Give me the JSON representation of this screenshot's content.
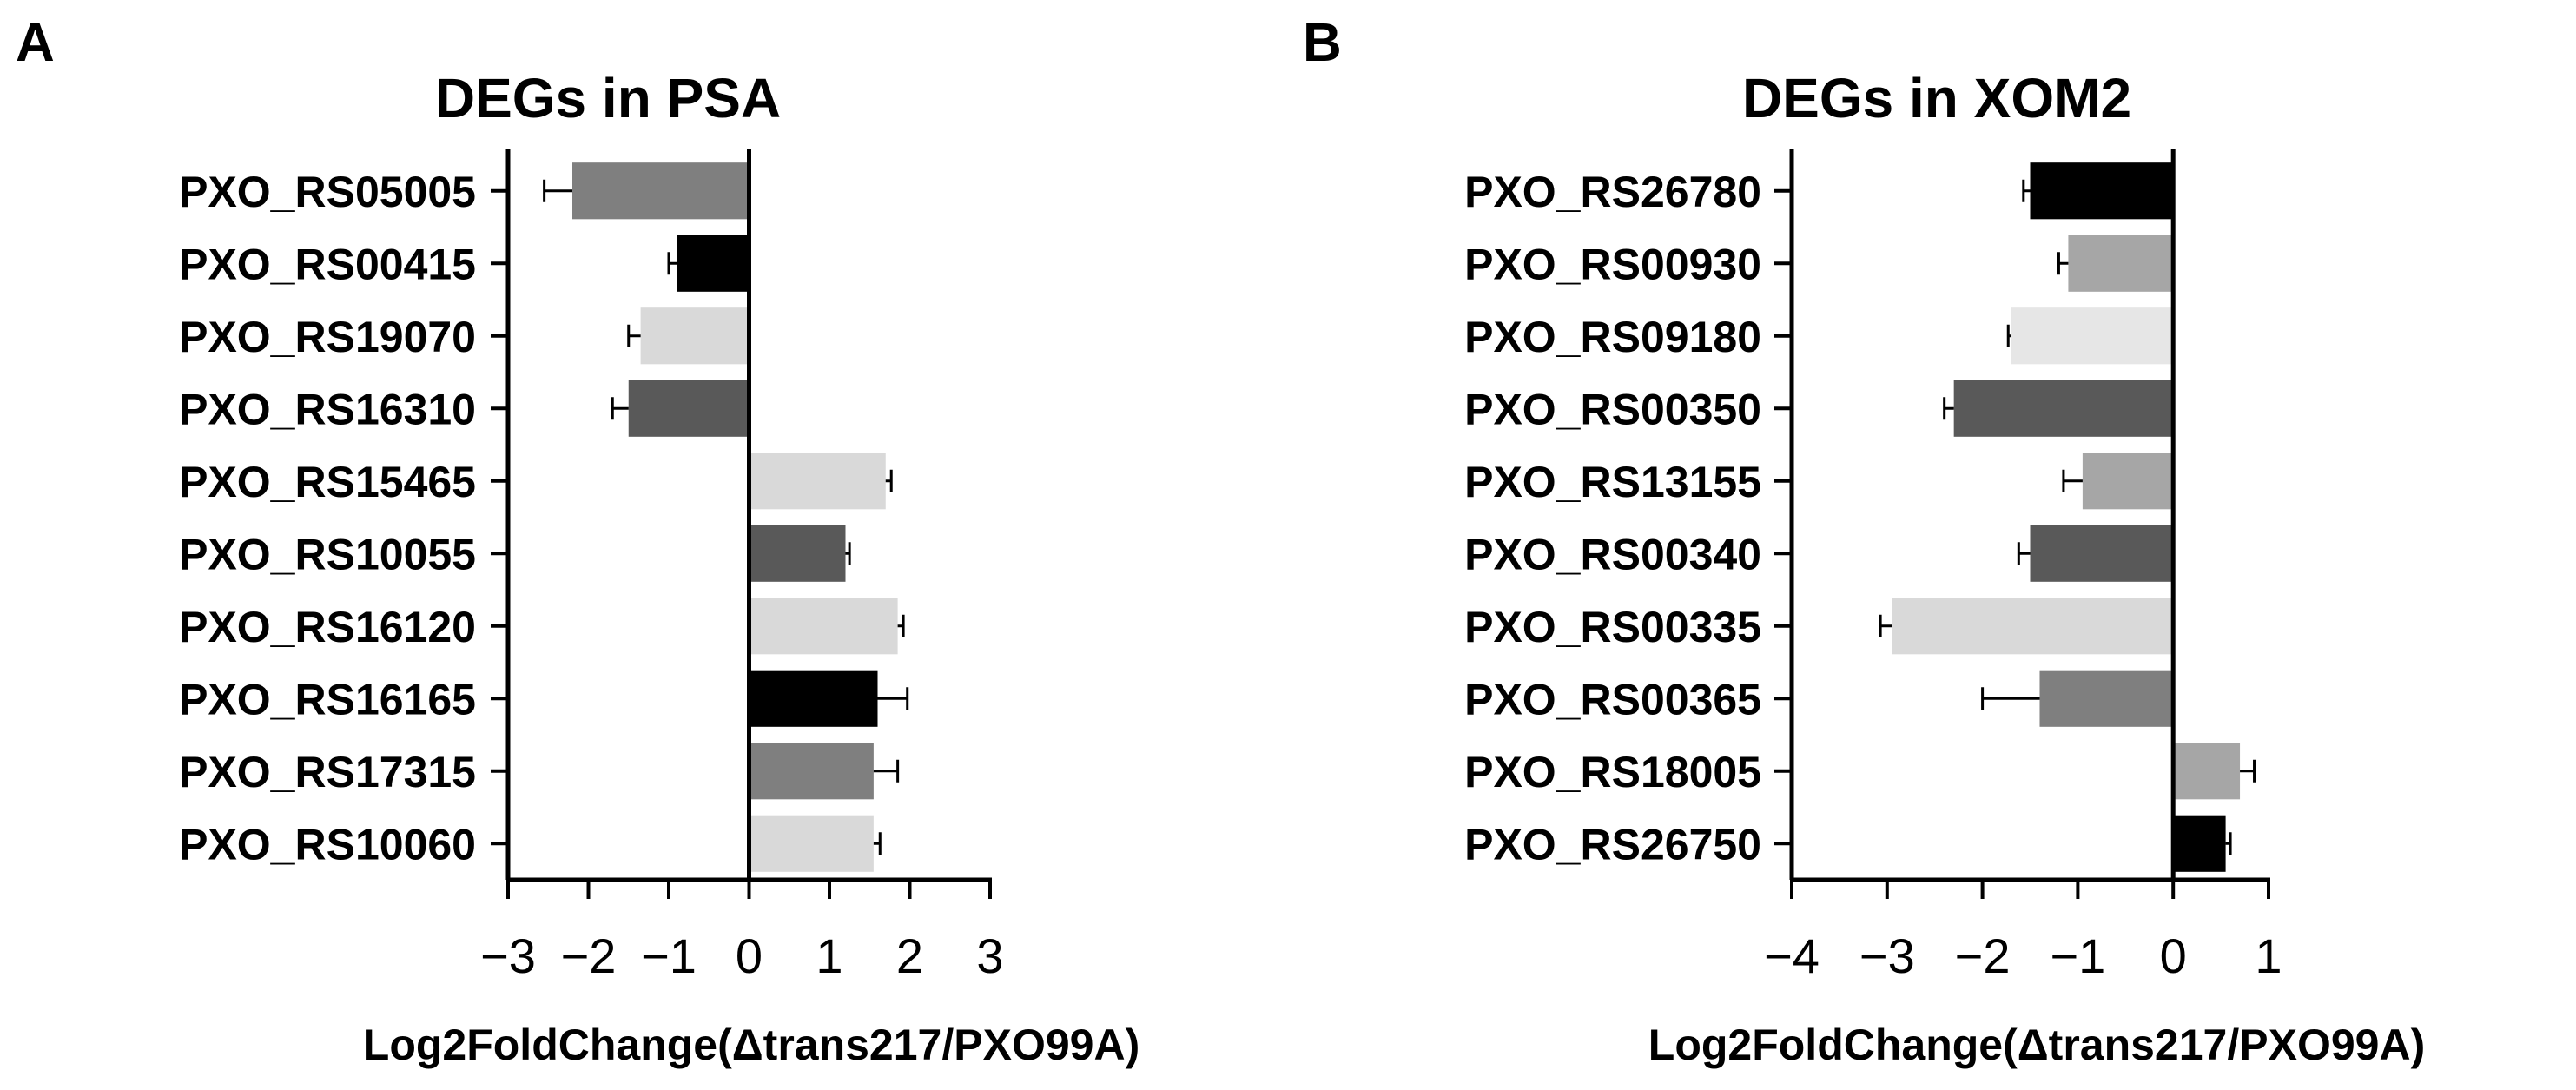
{
  "chart_data": [
    {
      "type": "bar",
      "orientation": "horizontal",
      "panel": "A",
      "title": "DEGs in PSA",
      "xlabel": "Log2FoldChange(Δtrans217/PXO99A)",
      "ylabel": "",
      "xlim": [
        -3,
        3
      ],
      "xticks": [
        "−3",
        "−2",
        "−1",
        "0",
        "1",
        "2",
        "3"
      ],
      "categories": [
        "PXO_RS05005",
        "PXO_RS00415",
        "PXO_RS19070",
        "PXO_RS16310",
        "PXO_RS15465",
        "PXO_RS10055",
        "PXO_RS16120",
        "PXO_RS16165",
        "PXO_RS17315",
        "PXO_RS10060"
      ],
      "values": [
        -2.2,
        -0.9,
        -1.35,
        -1.5,
        1.7,
        1.2,
        1.85,
        1.6,
        1.55,
        1.55
      ],
      "errors": [
        0.35,
        0.1,
        0.15,
        0.2,
        0.07,
        0.05,
        0.07,
        0.37,
        0.3,
        0.08
      ],
      "colors": [
        "#7f7f7f",
        "#000000",
        "#d9d9d9",
        "#595959",
        "#d9d9d9",
        "#595959",
        "#d9d9d9",
        "#000000",
        "#7f7f7f",
        "#d9d9d9"
      ],
      "grid": false,
      "legend": "none"
    },
    {
      "type": "bar",
      "orientation": "horizontal",
      "panel": "B",
      "title": "DEGs in XOM2",
      "xlabel": "Log2FoldChange(Δtrans217/PXO99A)",
      "ylabel": "",
      "xlim": [
        -4,
        1
      ],
      "xticks": [
        "−4",
        "−3",
        "−2",
        "−1",
        "0",
        "1"
      ],
      "categories": [
        "PXO_RS26780",
        "PXO_RS00930",
        "PXO_RS09180",
        "PXO_RS00350",
        "PXO_RS13155",
        "PXO_RS00340",
        "PXO_RS00335",
        "PXO_RS00365",
        "PXO_RS18005",
        "PXO_RS26750"
      ],
      "values": [
        -1.5,
        -1.1,
        -1.7,
        -2.3,
        -0.95,
        -1.5,
        -2.95,
        -1.4,
        0.7,
        0.55
      ],
      "errors": [
        0.07,
        0.1,
        0.03,
        0.1,
        0.2,
        0.12,
        0.12,
        0.6,
        0.15,
        0.05
      ],
      "colors": [
        "#000000",
        "#a6a6a6",
        "#e6e6e6",
        "#595959",
        "#a6a6a6",
        "#595959",
        "#d9d9d9",
        "#7f7f7f",
        "#a6a6a6",
        "#000000"
      ],
      "grid": false,
      "legend": "none"
    }
  ]
}
